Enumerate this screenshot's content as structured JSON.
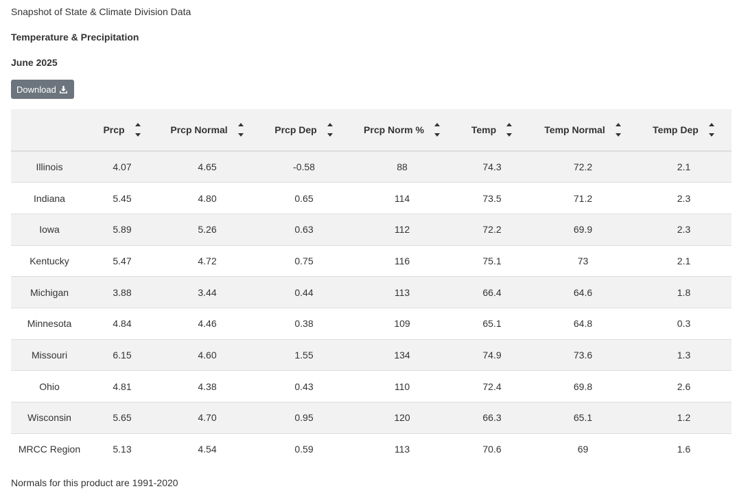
{
  "header": {
    "title": "Snapshot of State & Climate Division Data",
    "product": "Temperature & Precipitation",
    "period": "June 2025"
  },
  "download": {
    "label": "Download",
    "icon": "download-icon"
  },
  "table": {
    "columns": [
      {
        "key": "state",
        "label": ""
      },
      {
        "key": "prcp",
        "label": "Prcp"
      },
      {
        "key": "prcp_normal",
        "label": "Prcp Normal"
      },
      {
        "key": "prcp_dep",
        "label": "Prcp Dep"
      },
      {
        "key": "prcp_norm_pct",
        "label": "Prcp Norm %"
      },
      {
        "key": "temp",
        "label": "Temp"
      },
      {
        "key": "temp_normal",
        "label": "Temp Normal"
      },
      {
        "key": "temp_dep",
        "label": "Temp Dep"
      }
    ],
    "sort_icon": "sort-up-down-icon",
    "rows": [
      [
        "Illinois",
        "4.07",
        "4.65",
        "-0.58",
        "88",
        "74.3",
        "72.2",
        "2.1"
      ],
      [
        "Indiana",
        "5.45",
        "4.80",
        "0.65",
        "114",
        "73.5",
        "71.2",
        "2.3"
      ],
      [
        "Iowa",
        "5.89",
        "5.26",
        "0.63",
        "112",
        "72.2",
        "69.9",
        "2.3"
      ],
      [
        "Kentucky",
        "5.47",
        "4.72",
        "0.75",
        "116",
        "75.1",
        "73",
        "2.1"
      ],
      [
        "Michigan",
        "3.88",
        "3.44",
        "0.44",
        "113",
        "66.4",
        "64.6",
        "1.8"
      ],
      [
        "Minnesota",
        "4.84",
        "4.46",
        "0.38",
        "109",
        "65.1",
        "64.8",
        "0.3"
      ],
      [
        "Missouri",
        "6.15",
        "4.60",
        "1.55",
        "134",
        "74.9",
        "73.6",
        "1.3"
      ],
      [
        "Ohio",
        "4.81",
        "4.38",
        "0.43",
        "110",
        "72.4",
        "69.8",
        "2.6"
      ],
      [
        "Wisconsin",
        "5.65",
        "4.70",
        "0.95",
        "120",
        "66.3",
        "65.1",
        "1.2"
      ],
      [
        "MRCC Region",
        "5.13",
        "4.54",
        "0.59",
        "113",
        "70.6",
        "69",
        "1.6"
      ]
    ]
  },
  "footnote": "Normals for this product are 1991-2020",
  "colors": {
    "button_bg": "#6c757d",
    "stripe": "#f2f2f2",
    "text": "#333333",
    "border": "#dddddd"
  }
}
